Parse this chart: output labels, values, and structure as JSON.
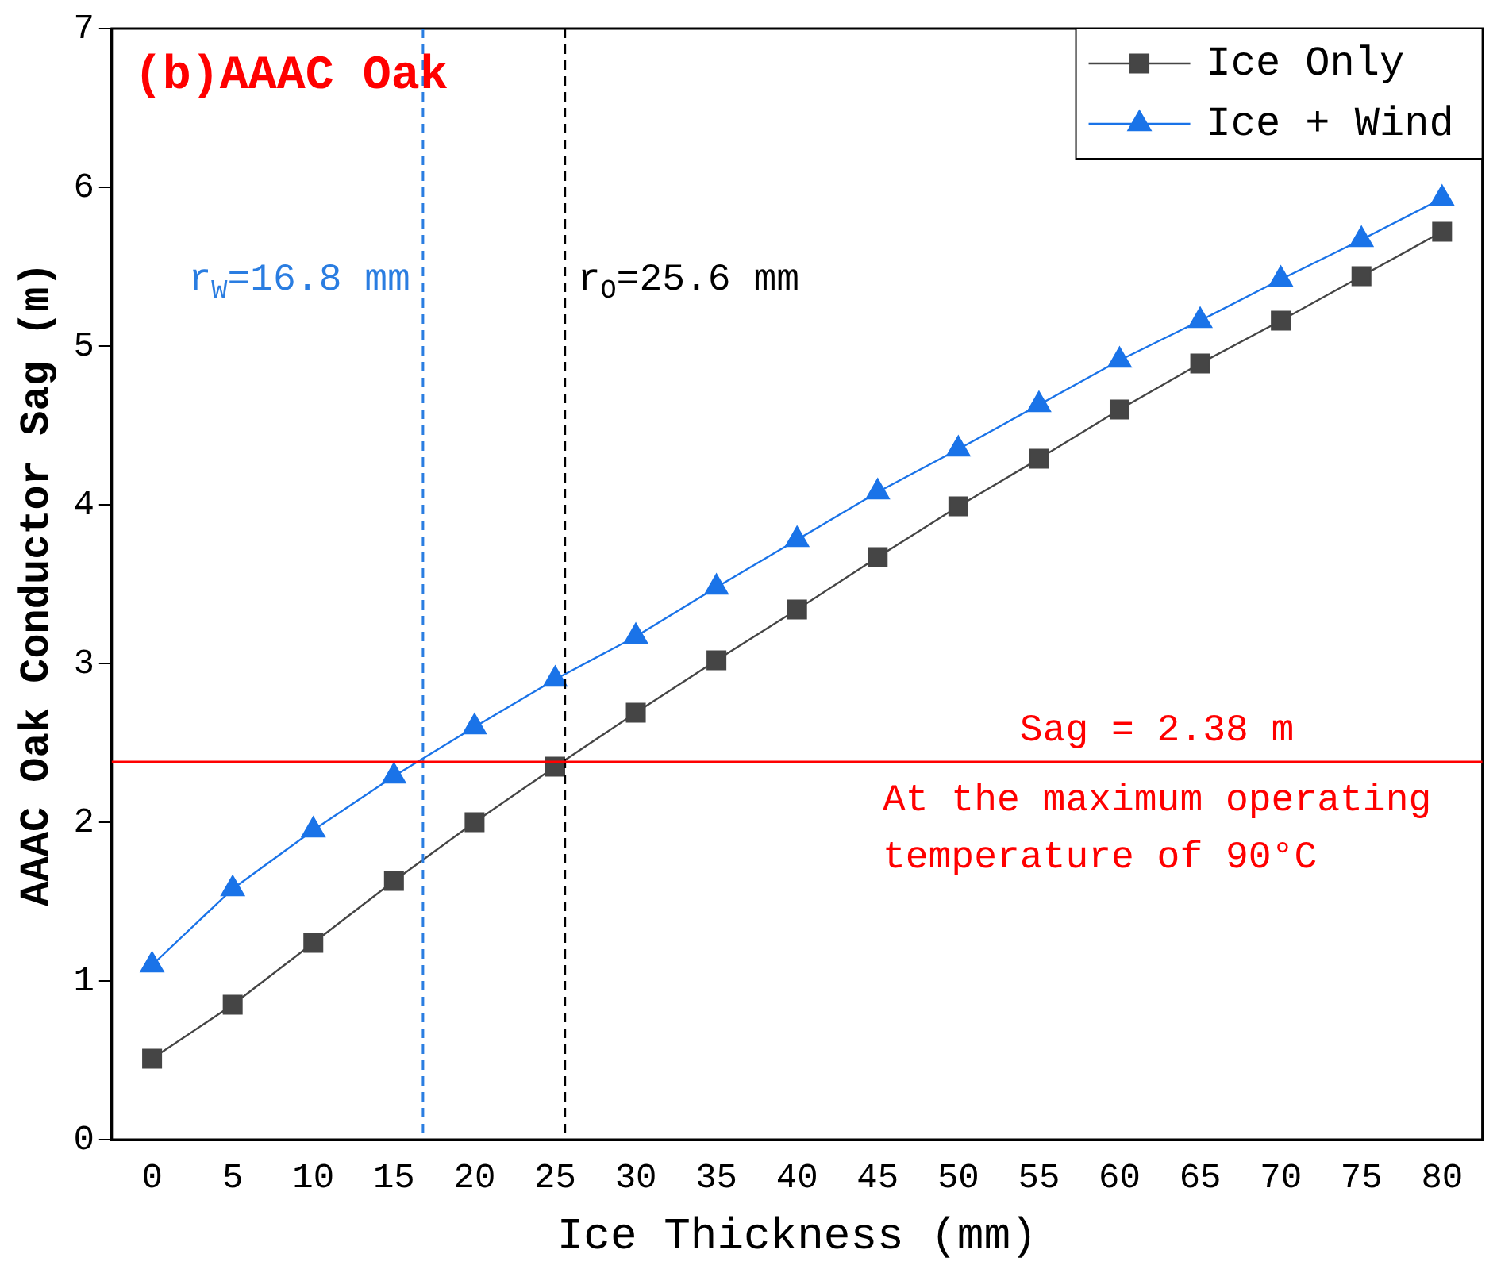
{
  "chart_data": {
    "type": "line",
    "title": "(b)AAAC Oak",
    "xlabel": "Ice Thickness (mm)",
    "ylabel": "AAAC Oak Conductor Sag (m)",
    "x": [
      0,
      5,
      10,
      15,
      20,
      25,
      30,
      35,
      40,
      45,
      50,
      55,
      60,
      65,
      70,
      75,
      80
    ],
    "series": [
      {
        "name": "Ice Only",
        "color": "#454545",
        "marker": "square",
        "values": [
          0.51,
          0.85,
          1.24,
          1.63,
          2.0,
          2.35,
          2.69,
          3.02,
          3.34,
          3.67,
          3.99,
          4.29,
          4.6,
          4.89,
          5.16,
          5.44,
          5.72
        ]
      },
      {
        "name": "Ice + Wind",
        "color": "#1a73e8",
        "marker": "triangle",
        "values": [
          1.1,
          1.58,
          1.95,
          2.29,
          2.6,
          2.9,
          3.17,
          3.48,
          3.78,
          4.08,
          4.35,
          4.63,
          4.91,
          5.16,
          5.42,
          5.67,
          5.93
        ]
      }
    ],
    "xlim": [
      -2.5,
      82.5
    ],
    "xticks": [
      0,
      5,
      10,
      15,
      20,
      25,
      30,
      35,
      40,
      45,
      50,
      55,
      60,
      65,
      70,
      75,
      80
    ],
    "ylim": [
      0,
      7
    ],
    "yticks": [
      0,
      1,
      2,
      3,
      4,
      5,
      6,
      7
    ],
    "ref_lines": [
      {
        "axis": "x",
        "value": 16.8,
        "label": "r$_{W}$=16.8 mm",
        "color": "#2a7de1",
        "line_style": "dashed"
      },
      {
        "axis": "x",
        "value": 25.6,
        "label": "r$_{O}$=25.6 mm",
        "color": "#000000",
        "line_style": "dashed"
      },
      {
        "axis": "y",
        "value": 2.38,
        "label": "Sag = 2.38 m",
        "color": "#ff0000",
        "line_style": "solid"
      }
    ],
    "annotations": [
      "At the maximum operating temperature of 90°C"
    ],
    "grid": false,
    "legend": "top right",
    "line_style": "solid"
  }
}
